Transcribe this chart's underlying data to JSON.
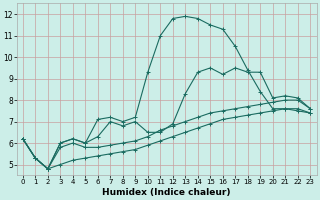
{
  "xlabel": "Humidex (Indice chaleur)",
  "ylabel": "",
  "xlim": [
    -0.5,
    23.5
  ],
  "ylim": [
    4.5,
    12.5
  ],
  "yticks": [
    5,
    6,
    7,
    8,
    9,
    10,
    11,
    12
  ],
  "xticks": [
    0,
    1,
    2,
    3,
    4,
    5,
    6,
    7,
    8,
    9,
    10,
    11,
    12,
    13,
    14,
    15,
    16,
    17,
    18,
    19,
    20,
    21,
    22,
    23
  ],
  "background_color": "#cceee8",
  "grid_color": "#c8a0a0",
  "line_color": "#1a6b60",
  "line1_y": [
    6.2,
    5.3,
    4.8,
    6.0,
    6.2,
    6.0,
    6.3,
    7.0,
    6.8,
    7.0,
    6.5,
    6.5,
    6.9,
    8.3,
    9.3,
    9.5,
    9.2,
    9.5,
    9.3,
    9.3,
    8.1,
    8.2,
    8.1,
    7.6
  ],
  "line2_y": [
    6.2,
    5.3,
    4.8,
    5.8,
    6.0,
    5.8,
    5.8,
    5.9,
    6.0,
    6.1,
    6.3,
    6.6,
    6.8,
    7.0,
    7.2,
    7.4,
    7.5,
    7.6,
    7.7,
    7.8,
    7.9,
    8.0,
    8.0,
    7.6
  ],
  "line3_y": [
    6.2,
    5.3,
    4.8,
    5.0,
    5.2,
    5.3,
    5.4,
    5.5,
    5.6,
    5.7,
    5.9,
    6.1,
    6.3,
    6.5,
    6.7,
    6.9,
    7.1,
    7.2,
    7.3,
    7.4,
    7.5,
    7.6,
    7.6,
    7.4
  ],
  "line4_y": [
    6.2,
    5.3,
    4.8,
    6.0,
    6.2,
    6.0,
    7.1,
    7.2,
    7.0,
    7.2,
    9.3,
    11.0,
    11.8,
    11.9,
    11.8,
    11.5,
    11.3,
    10.5,
    9.4,
    8.4,
    7.6,
    7.6,
    7.5,
    7.4
  ],
  "xlabel_fontsize": 6.5,
  "tick_fontsize_x": 5.0,
  "tick_fontsize_y": 5.5
}
